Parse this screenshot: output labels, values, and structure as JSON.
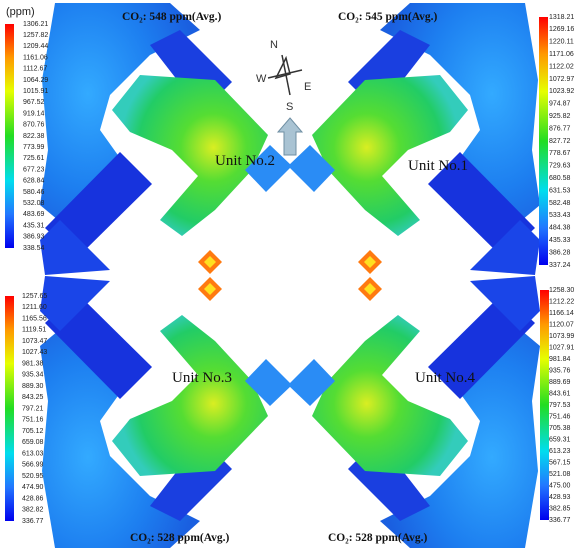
{
  "unit_label": "(ppm)",
  "compass": {
    "n": "N",
    "e": "E",
    "s": "S",
    "w": "W"
  },
  "panels": [
    {
      "unit": "Unit No.2",
      "co2": "CO₂: 548 ppm(Avg.)",
      "colorbar": {
        "labels": [
          "1306.21",
          "1257.82",
          "1209.44",
          "1161.06",
          "1112.67",
          "1064.29",
          "1015.91",
          "967.52",
          "919.14",
          "870.76",
          "822.38",
          "773.99",
          "725.61",
          "677.23",
          "628.84",
          "580.46",
          "532.08",
          "483.69",
          "435.31",
          "386.93",
          "338.54"
        ]
      }
    },
    {
      "unit": "Unit No.1",
      "co2": "CO₂: 545 ppm(Avg.)",
      "colorbar": {
        "labels": [
          "1318.21",
          "1269.16",
          "1220.11",
          "1171.06",
          "1122.02",
          "1072.97",
          "1023.92",
          "974.87",
          "925.82",
          "876.77",
          "827.72",
          "778.67",
          "729.63",
          "680.58",
          "631.53",
          "582.48",
          "533.43",
          "484.38",
          "435.33",
          "386.28",
          "337.24"
        ]
      }
    },
    {
      "unit": "Unit No.3",
      "co2": "CO₂: 528 ppm(Avg.)",
      "colorbar": {
        "labels": [
          "1257.65",
          "1211.60",
          "1165.56",
          "1119.51",
          "1073.47",
          "1027.43",
          "981.38",
          "935.34",
          "889.30",
          "843.25",
          "797.21",
          "751.16",
          "705.12",
          "659.08",
          "613.03",
          "566.99",
          "520.95",
          "474.90",
          "428.86",
          "382.82",
          "336.77"
        ]
      }
    },
    {
      "unit": "Unit No.4",
      "co2": "CO₂: 528 ppm(Avg.)",
      "colorbar": {
        "labels": [
          "1258.30",
          "1212.22",
          "1166.14",
          "1120.07",
          "1073.99",
          "1027.91",
          "981.84",
          "935.76",
          "889.69",
          "843.61",
          "797.53",
          "751.46",
          "705.38",
          "659.31",
          "613.23",
          "567.15",
          "521.08",
          "475.00",
          "428.93",
          "382.85",
          "336.77"
        ]
      }
    }
  ]
}
